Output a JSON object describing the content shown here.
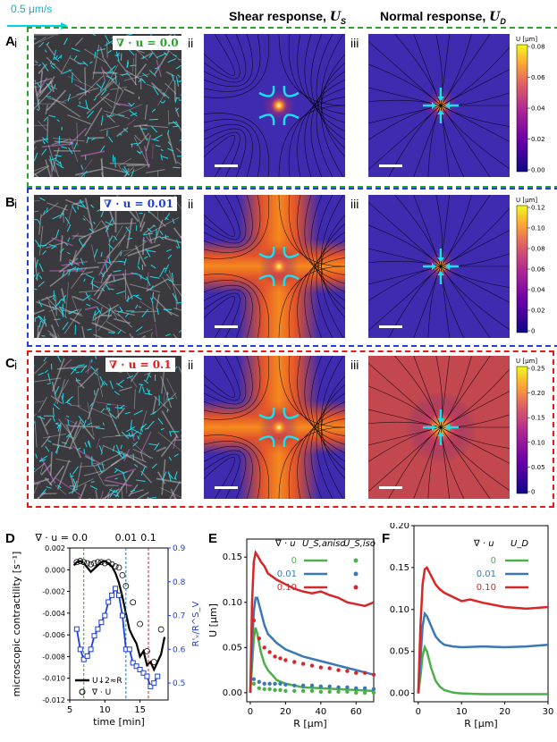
{
  "scale_arrow_label": "0.5 μm/s",
  "headers": {
    "shear": "Shear response, ",
    "shear_sym": "U",
    "shear_sub": "S",
    "normal": "Normal response, ",
    "normal_sym": "U",
    "normal_sub": "D"
  },
  "rows": [
    {
      "panel": "A",
      "div_label": "∇ · u = 0.0",
      "color": "#2ca02c",
      "cbar_title": "U [μm]",
      "cbar_ticks": [
        "0.08",
        "0.06",
        "0.04",
        "0.02",
        "0.00"
      ]
    },
    {
      "panel": "B",
      "div_label": "∇ · u = 0.01",
      "color": "#1f3fd6",
      "cbar_title": "U [μm]",
      "cbar_ticks": [
        "0.12",
        "0.10",
        "0.08",
        "0.06",
        "0.04",
        "0.02",
        "0"
      ]
    },
    {
      "panel": "C",
      "div_label": "∇ · u = 0.1",
      "color": "#e31a1c",
      "cbar_title": "U [μm]",
      "cbar_ticks": [
        "0.25",
        "0.20",
        "0.15",
        "0.10",
        "0.05",
        "0"
      ]
    }
  ],
  "roman": {
    "i": "i",
    "ii": "ii",
    "iii": "iii"
  },
  "bottom_labels": {
    "D": "D",
    "E": "E",
    "F": "F"
  },
  "chart_data": [
    {
      "panel": "D",
      "type": "line",
      "title": "",
      "xlabel": "time [min]",
      "ylabel": "microscopic contractility [s⁻¹]",
      "y2label": "R'ᵥ/R^S_V",
      "xlim": [
        5,
        19
      ],
      "ylim": [
        -0.012,
        0.002
      ],
      "y2lim": [
        0.45,
        0.9
      ],
      "xticks": [
        "5",
        "10",
        "15"
      ],
      "yticks": [
        "0.002",
        "0.000",
        "-0.002",
        "-0.004",
        "-0.006",
        "-0.008",
        "-0.010",
        "-0.012"
      ],
      "y2ticks": [
        "0.9",
        "0.8",
        "0.7",
        "0.6",
        "0.5"
      ],
      "top_annotations": [
        {
          "x": 7,
          "label": "∇ · u = 0.0",
          "color": "#2ca02c"
        },
        {
          "x": 13,
          "label": "0.01",
          "color": "#1f77b4"
        },
        {
          "x": 16.2,
          "label": "0.1",
          "color": "#d62728"
        }
      ],
      "legend": [
        {
          "name": "U↓2≈R",
          "style": "black line"
        },
        {
          "name": "∇ · U",
          "style": "open circles"
        }
      ],
      "series": [
        {
          "name": "U↓2≈R",
          "color": "#000000",
          "x": [
            5.6,
            6,
            6.5,
            7,
            7.5,
            8,
            8.5,
            9,
            9.5,
            10,
            10.5,
            11,
            11.5,
            12,
            12.5,
            13,
            13.5,
            14,
            14.5,
            15,
            15.5,
            16,
            16.5,
            17,
            17.5,
            18,
            18.5
          ],
          "y": [
            0.0004,
            0.0007,
            0.0008,
            0.0006,
            0.0002,
            -0.0002,
            0.0001,
            0.0004,
            0.0007,
            0.0008,
            0.0006,
            0.0003,
            -0.0003,
            -0.0012,
            -0.0025,
            -0.004,
            -0.0055,
            -0.0062,
            -0.0068,
            -0.008,
            -0.0075,
            -0.0088,
            -0.0085,
            -0.0092,
            -0.0085,
            -0.0078,
            -0.0062
          ]
        },
        {
          "name": "∇ · U",
          "color": "#000000",
          "x": [
            6,
            6.5,
            7,
            7.5,
            8,
            8.5,
            9,
            9.5,
            10,
            10.5,
            11,
            11.5,
            12,
            12.5,
            13,
            14,
            15,
            16,
            17,
            18
          ],
          "y": [
            0.0007,
            0.0008,
            0.0007,
            0.0006,
            0.0005,
            0.0006,
            0.0007,
            0.0007,
            0.0006,
            0.0007,
            0.0005,
            0.0003,
            0.0002,
            -0.0005,
            -0.0015,
            -0.003,
            -0.005,
            -0.0075,
            -0.0085,
            -0.0055
          ]
        },
        {
          "name": "R'ᵥ/R^S_V",
          "color": "#1f3fd6",
          "axis": "right",
          "x": [
            6,
            6.5,
            7,
            7.5,
            8,
            8.5,
            9,
            9.5,
            10,
            10.5,
            11,
            11.5,
            12,
            12.5,
            13,
            13.5,
            14,
            14.5,
            15,
            15.5,
            16,
            16.5,
            17,
            17.5
          ],
          "y": [
            0.66,
            0.6,
            0.57,
            0.58,
            0.6,
            0.64,
            0.66,
            0.68,
            0.7,
            0.74,
            0.76,
            0.78,
            0.76,
            0.7,
            0.6,
            0.6,
            0.56,
            0.55,
            0.54,
            0.53,
            0.52,
            0.49,
            0.5,
            0.52
          ]
        }
      ]
    },
    {
      "panel": "E",
      "type": "line",
      "xlabel": "R [μm]",
      "ylabel": "U [μm]",
      "xlim": [
        -2,
        70
      ],
      "ylim": [
        -0.01,
        0.17
      ],
      "xticks": [
        "0",
        "20",
        "40",
        "60"
      ],
      "yticks": [
        "0.00",
        "0.05",
        "0.10",
        "0.15"
      ],
      "legend_title": "∇ · u",
      "legend_cols": [
        "U_S,aniso",
        "U_S,iso"
      ],
      "legend": [
        {
          "name": "0",
          "color": "#4daf4a"
        },
        {
          "name": "0.01",
          "color": "#3a78b8"
        },
        {
          "name": "0.10",
          "color": "#d62728"
        }
      ],
      "series": [
        {
          "name": "0 aniso",
          "color": "#4daf4a",
          "x": [
            0,
            1,
            2,
            3,
            4,
            6,
            8,
            10,
            15,
            20,
            30,
            40,
            50,
            60,
            70
          ],
          "y": [
            0.0,
            0.03,
            0.06,
            0.072,
            0.065,
            0.045,
            0.032,
            0.025,
            0.014,
            0.01,
            0.006,
            0.005,
            0.004,
            0.003,
            0.002
          ]
        },
        {
          "name": "0.01 aniso",
          "color": "#3a78b8",
          "x": [
            0,
            1,
            2,
            3,
            4,
            6,
            8,
            10,
            15,
            20,
            30,
            40,
            50,
            60,
            70
          ],
          "y": [
            0.0,
            0.05,
            0.09,
            0.105,
            0.105,
            0.09,
            0.075,
            0.065,
            0.055,
            0.048,
            0.04,
            0.035,
            0.03,
            0.025,
            0.02
          ]
        },
        {
          "name": "0.10 aniso",
          "color": "#d62728",
          "x": [
            0,
            1,
            2,
            3,
            4,
            6,
            8,
            10,
            15,
            20,
            25,
            30,
            35,
            40,
            45,
            50,
            55,
            60,
            65,
            70
          ],
          "y": [
            0.0,
            0.1,
            0.145,
            0.155,
            0.152,
            0.145,
            0.14,
            0.132,
            0.125,
            0.12,
            0.115,
            0.112,
            0.11,
            0.112,
            0.108,
            0.105,
            0.1,
            0.098,
            0.096,
            0.1
          ]
        },
        {
          "name": "0 iso",
          "color": "#4daf4a",
          "dots": true,
          "x": [
            2,
            5,
            8,
            11,
            14,
            17,
            20,
            25,
            30,
            35,
            40,
            45,
            50,
            55,
            60,
            65,
            70
          ],
          "y": [
            0.01,
            0.005,
            0.004,
            0.004,
            0.003,
            0.003,
            0.002,
            0.002,
            0.002,
            0.002,
            0.001,
            0.001,
            0.001,
            0.001,
            0.0,
            0.0,
            0.0
          ]
        },
        {
          "name": "0.01 iso",
          "color": "#3a78b8",
          "dots": true,
          "x": [
            2,
            5,
            8,
            11,
            14,
            17,
            20,
            25,
            30,
            35,
            40,
            45,
            50,
            55,
            60,
            65,
            70
          ],
          "y": [
            0.015,
            0.012,
            0.01,
            0.01,
            0.01,
            0.01,
            0.009,
            0.008,
            0.008,
            0.008,
            0.007,
            0.007,
            0.006,
            0.006,
            0.005,
            0.005,
            0.004
          ]
        },
        {
          "name": "0.10 iso",
          "color": "#d62728",
          "dots": true,
          "x": [
            2,
            5,
            8,
            11,
            14,
            17,
            20,
            25,
            30,
            35,
            40,
            45,
            50,
            55,
            60,
            65,
            70
          ],
          "y": [
            0.08,
            0.06,
            0.05,
            0.045,
            0.04,
            0.038,
            0.036,
            0.034,
            0.032,
            0.03,
            0.028,
            0.027,
            0.025,
            0.024,
            0.022,
            0.022,
            0.02
          ]
        }
      ]
    },
    {
      "panel": "F",
      "type": "line",
      "xlabel": "R [μm]",
      "ylabel": "",
      "xlim": [
        -1,
        30
      ],
      "ylim": [
        -0.01,
        0.2
      ],
      "xticks": [
        "0",
        "10",
        "20",
        "30"
      ],
      "yticks": [
        "0.00",
        "0.05",
        "0.10",
        "0.15",
        "0.20"
      ],
      "legend_title": "∇ · u",
      "legend_col": "U_D",
      "legend": [
        {
          "name": "0",
          "color": "#4daf4a"
        },
        {
          "name": "0.01",
          "color": "#3a78b8"
        },
        {
          "name": "0.10",
          "color": "#d62728"
        }
      ],
      "series": [
        {
          "name": "0",
          "color": "#4daf4a",
          "x": [
            0,
            0.5,
            1,
            1.5,
            2,
            3,
            4,
            5,
            6,
            8,
            10,
            15,
            20,
            25,
            30
          ],
          "y": [
            0.0,
            0.02,
            0.045,
            0.055,
            0.05,
            0.03,
            0.015,
            0.008,
            0.004,
            0.001,
            0.0,
            -0.001,
            -0.001,
            -0.001,
            -0.001
          ]
        },
        {
          "name": "0.01",
          "color": "#3a78b8",
          "x": [
            0,
            0.5,
            1,
            1.5,
            2,
            3,
            4,
            5,
            6,
            8,
            10,
            15,
            20,
            25,
            30
          ],
          "y": [
            0.0,
            0.04,
            0.08,
            0.095,
            0.092,
            0.08,
            0.068,
            0.062,
            0.058,
            0.056,
            0.055,
            0.056,
            0.055,
            0.056,
            0.058
          ]
        },
        {
          "name": "0.10",
          "color": "#d62728",
          "x": [
            0,
            0.5,
            1,
            1.5,
            2,
            3,
            4,
            5,
            6,
            8,
            10,
            12,
            15,
            18,
            20,
            25,
            30
          ],
          "y": [
            0.0,
            0.08,
            0.13,
            0.148,
            0.15,
            0.14,
            0.13,
            0.124,
            0.12,
            0.115,
            0.11,
            0.112,
            0.108,
            0.105,
            0.103,
            0.101,
            0.103
          ]
        }
      ]
    }
  ]
}
